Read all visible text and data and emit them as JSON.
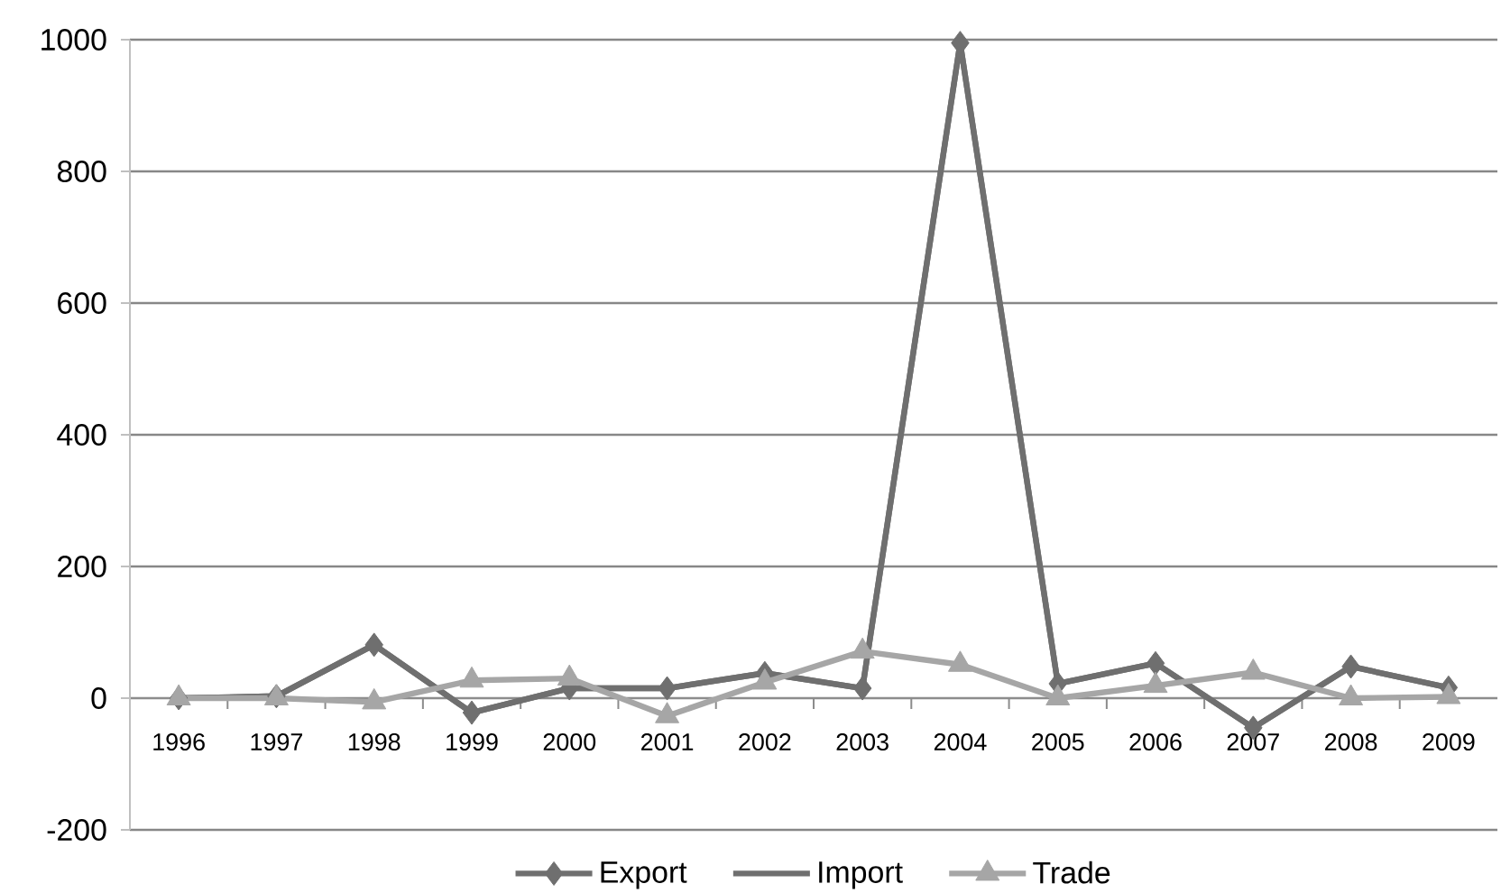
{
  "chart_data": {
    "type": "line",
    "categories": [
      "1996",
      "1997",
      "1998",
      "1999",
      "2000",
      "2001",
      "2002",
      "2003",
      "2004",
      "2005",
      "2006",
      "2007",
      "2008",
      "2009"
    ],
    "series": [
      {
        "name": "Export",
        "color": "#6f6f6f",
        "marker": "diamond",
        "values": [
          0,
          3,
          81,
          -22,
          15,
          15,
          38,
          15,
          995,
          22,
          53,
          -45,
          48,
          16
        ]
      },
      {
        "name": "Import",
        "color": "#6f6f6f",
        "marker": "none",
        "values": [
          0,
          3,
          81,
          -22,
          15,
          15,
          38,
          15,
          995,
          22,
          53,
          -45,
          48,
          16
        ]
      },
      {
        "name": "Trade",
        "color": "#a6a6a6",
        "marker": "triangle",
        "values": [
          0,
          0,
          -6,
          27,
          30,
          -27,
          24,
          71,
          51,
          0,
          19,
          39,
          0,
          2
        ]
      }
    ],
    "ylim": [
      -200,
      1000
    ],
    "yticks": [
      -200,
      0,
      200,
      400,
      600,
      800,
      1000
    ],
    "grid": "y",
    "legend": "bottom",
    "line_style": "solid"
  }
}
